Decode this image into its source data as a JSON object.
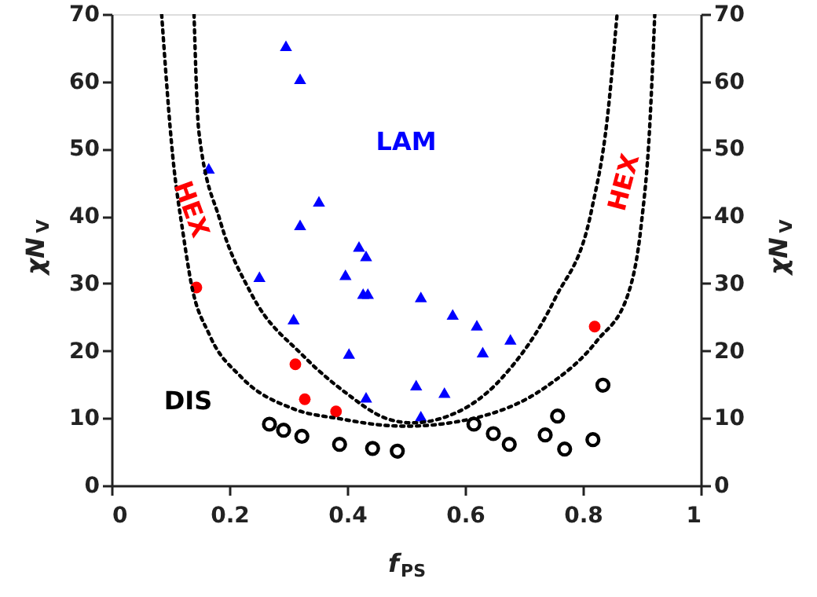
{
  "chart_data": {
    "type": "scatter",
    "xlabel": "f$_{PS}$",
    "ylabel": "χN$_{V}$",
    "y2label": "χN$_{V}$",
    "xlim": [
      0,
      1
    ],
    "xticks": [
      0,
      0.2,
      0.4,
      0.6,
      0.8,
      1
    ],
    "ylim": [
      0,
      70
    ],
    "yticks": [
      0,
      10,
      20,
      30,
      40,
      50,
      60,
      70
    ],
    "y2lim": [
      0,
      70
    ],
    "y2ticks": [
      0,
      10,
      20,
      30,
      40,
      50,
      60,
      70
    ],
    "grid": false,
    "series": [
      {
        "marker": "triangle",
        "color": "#0000ff",
        "x": [
          0.296,
          0.32,
          0.165,
          0.352,
          0.32,
          0.42,
          0.432,
          0.251,
          0.397,
          0.427,
          0.435,
          0.525,
          0.579,
          0.309,
          0.403,
          0.517,
          0.565,
          0.432,
          0.525,
          0.62,
          0.63,
          0.677
        ],
        "values": [
          65.3,
          60.4,
          47.1,
          42.2,
          38.7,
          35.5,
          34.1,
          31.0,
          31.3,
          28.5,
          28.5,
          28.0,
          25.4,
          24.7,
          19.6,
          14.9,
          13.8,
          13.1,
          10.3,
          23.8,
          19.8,
          21.7
        ]
      },
      {
        "marker": "circle",
        "color": "#ff0000",
        "x": [
          0.144,
          0.312,
          0.328,
          0.381,
          0.82
        ],
        "values": [
          29.4,
          18.0,
          12.8,
          11.0,
          23.6
        ]
      },
      {
        "marker": "circle",
        "color": "#000000",
        "x": [
          0.268,
          0.292,
          0.323,
          0.387,
          0.443,
          0.485,
          0.615,
          0.648,
          0.675,
          0.736,
          0.757,
          0.769,
          0.817,
          0.834
        ],
        "values": [
          9.1,
          8.2,
          7.3,
          6.1,
          5.5,
          5.1,
          9.1,
          7.7,
          6.1,
          7.5,
          10.3,
          5.4,
          6.8,
          14.9
        ]
      },
      {
        "type": "line",
        "line_style": "dotted",
        "color": "#000000",
        "x": [
          0.085,
          0.104,
          0.122,
          0.135,
          0.166,
          0.22,
          0.308,
          0.388,
          0.468,
          0.5,
          0.611,
          0.735,
          0.824,
          0.877,
          0.899,
          0.913,
          0.922
        ],
        "values": [
          70,
          48.8,
          37.1,
          30.1,
          22.4,
          16.1,
          11.4,
          9.9,
          8.9,
          8.8,
          9.9,
          14.5,
          21.5,
          28.5,
          38.7,
          52.7,
          70
        ]
      },
      {
        "type": "line",
        "line_style": "dotted",
        "color": "#000000",
        "x": [
          0.14,
          0.148,
          0.184,
          0.237,
          0.326,
          0.397,
          0.468,
          0.51,
          0.557,
          0.664,
          0.753,
          0.815,
          0.841,
          0.858
        ],
        "values": [
          70,
          52.7,
          39.4,
          28.5,
          19.2,
          13.8,
          9.9,
          9.3,
          9.9,
          16.1,
          27.8,
          41,
          54.2,
          70
        ]
      }
    ],
    "annotations": [
      "LAM",
      "HEX",
      "HEX",
      "DIS"
    ]
  }
}
